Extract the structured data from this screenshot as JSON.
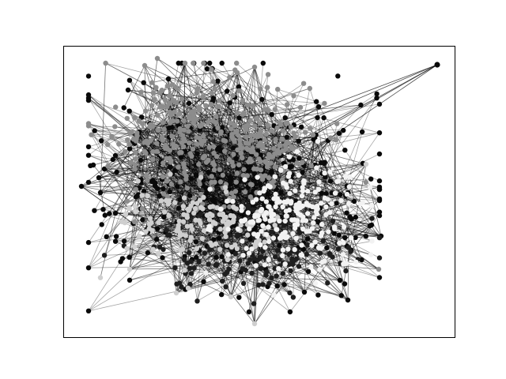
{
  "figure": {
    "background": "#ffffff",
    "frame_color": "#000000",
    "axes_visible": false,
    "ticks_visible": false
  },
  "graph": {
    "type": "network",
    "layout": "force-directed",
    "edge_color": "#000000",
    "node_color_classes": [
      "#0a0a0a",
      "#1e1e1e",
      "#8c8c8c",
      "#cfcfcf",
      "#f2f2f2"
    ]
  }
}
